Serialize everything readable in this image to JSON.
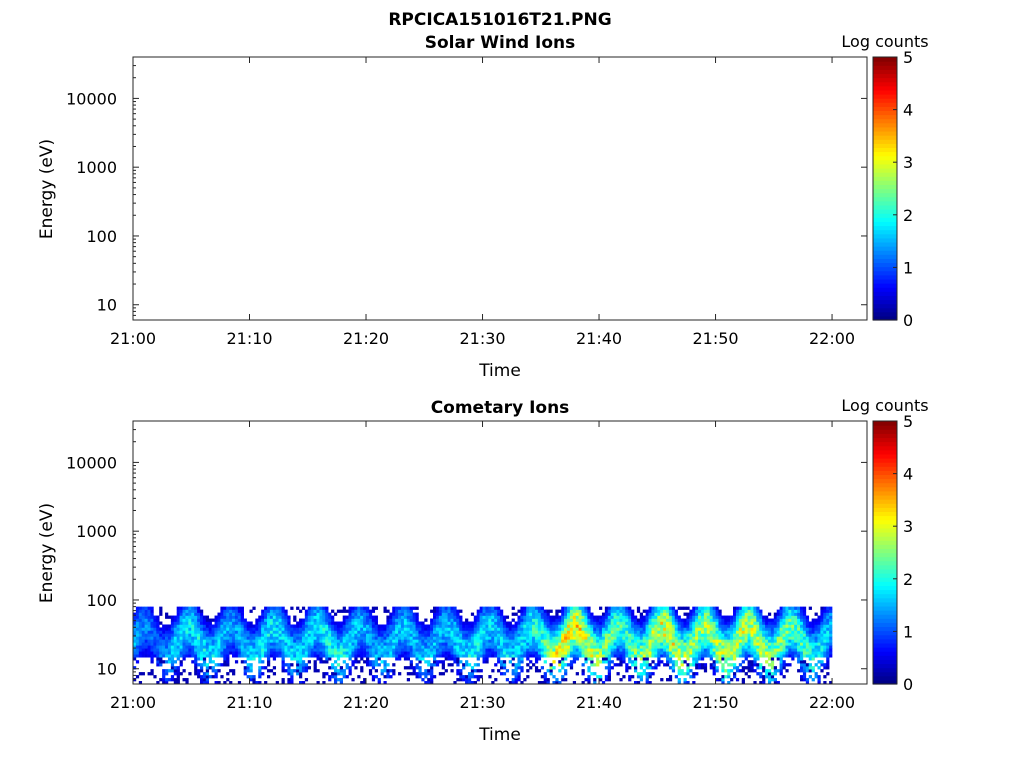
{
  "figure": {
    "title": "RPCICA151016T21.PNG"
  },
  "chart_data": [
    {
      "type": "heatmap",
      "title": "Solar Wind Ions",
      "xlabel": "Time",
      "ylabel": "Energy (eV)",
      "x_ticks": [
        "21:00",
        "21:10",
        "21:20",
        "21:30",
        "21:40",
        "21:50",
        "22:00"
      ],
      "xlim": [
        "21:00",
        "22:03"
      ],
      "y_scale": "log",
      "y_ticks": [
        10,
        100,
        1000,
        10000
      ],
      "ylim": [
        6,
        40000
      ],
      "colorbar": {
        "label": "Log counts",
        "ticks": [
          0,
          1,
          2,
          3,
          4,
          5
        ],
        "range": [
          0,
          5
        ],
        "colormap": "jet"
      },
      "data": []
    },
    {
      "type": "heatmap",
      "title": "Cometary Ions",
      "xlabel": "Time",
      "ylabel": "Energy (eV)",
      "x_ticks": [
        "21:00",
        "21:10",
        "21:20",
        "21:30",
        "21:40",
        "21:50",
        "22:00"
      ],
      "xlim": [
        "21:00",
        "22:03"
      ],
      "y_scale": "log",
      "y_ticks": [
        10,
        100,
        1000,
        10000
      ],
      "ylim": [
        6,
        40000
      ],
      "colorbar": {
        "label": "Log counts",
        "ticks": [
          0,
          1,
          2,
          3,
          4,
          5
        ],
        "range": [
          0,
          5
        ],
        "colormap": "jet"
      },
      "data_summary": {
        "time_range": [
          "21:00",
          "22:00"
        ],
        "energy_range_eV": [
          6,
          80
        ],
        "peak_log_counts": 3.3,
        "peak_window": [
          "21:35",
          "21:52"
        ]
      },
      "time_profile_minutes": [
        0,
        2,
        3.5,
        6,
        8.5,
        11,
        13,
        15,
        17.5,
        20,
        22,
        24,
        26.5,
        29,
        31,
        33,
        35,
        36.5,
        38,
        40,
        42,
        44,
        46,
        48,
        50,
        52,
        54,
        56,
        58,
        60
      ],
      "time_profile_peak_log_counts": [
        1.5,
        1.1,
        1.8,
        1.9,
        1.4,
        1.9,
        1.7,
        1.8,
        2.0,
        1.5,
        1.7,
        1.6,
        1.6,
        1.9,
        1.7,
        1.8,
        2.2,
        3.2,
        3.2,
        2.6,
        2.1,
        2.8,
        3.1,
        2.6,
        2.8,
        2.9,
        2.7,
        2.4,
        2.2,
        1.5
      ]
    }
  ]
}
